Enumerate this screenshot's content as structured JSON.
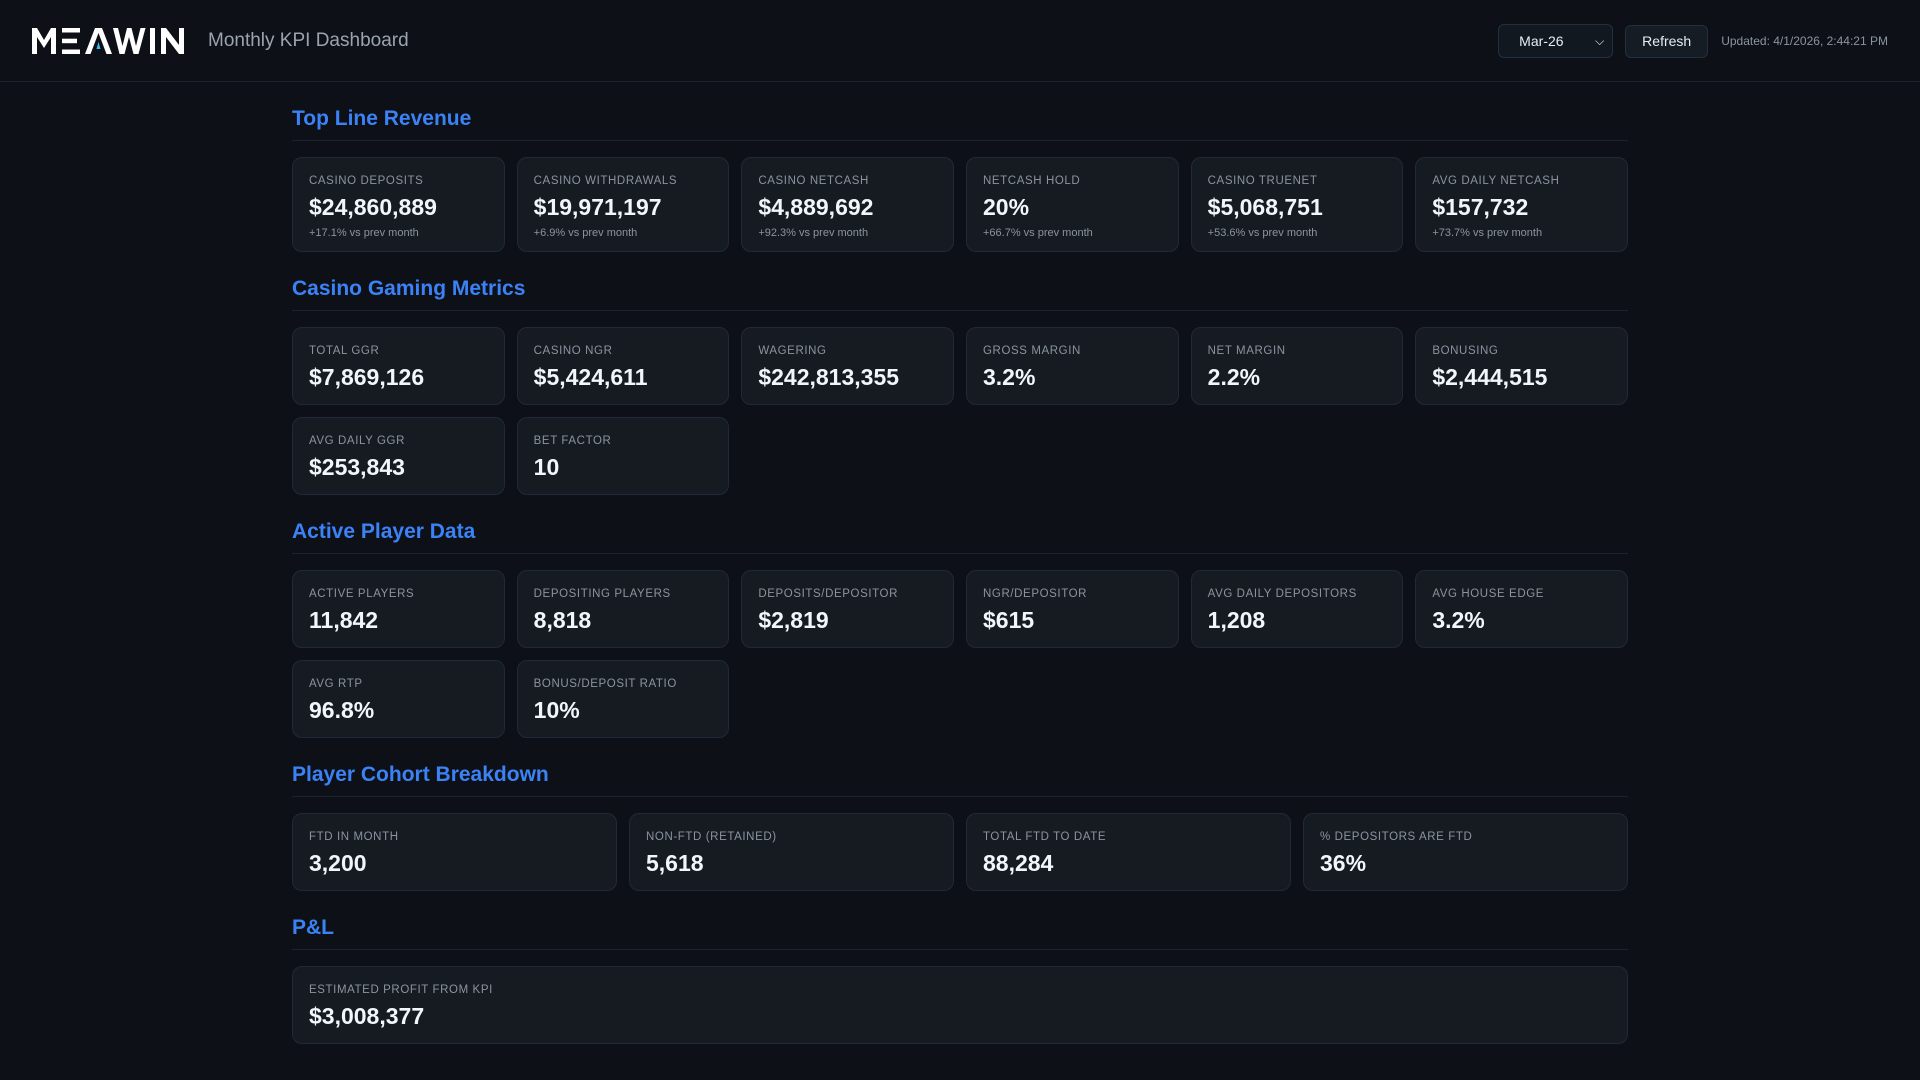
{
  "header": {
    "logo_text": "METAWIN",
    "title": "Monthly KPI Dashboard",
    "month_select": "Mar-26",
    "refresh_label": "Refresh",
    "updated": "Updated: 4/1/2026, 2:44:21 PM"
  },
  "colors": {
    "accent": "#3b82f6",
    "background": "#0d1117",
    "card": "#161b22"
  },
  "sections": [
    {
      "title": "Top Line Revenue",
      "cards": [
        {
          "label": "Casino Deposits",
          "value": "$24,860,889",
          "change": "+17.1% vs prev month"
        },
        {
          "label": "Casino Withdrawals",
          "value": "$19,971,197",
          "change": "+6.9% vs prev month"
        },
        {
          "label": "Casino Netcash",
          "value": "$4,889,692",
          "change": "+92.3% vs prev month"
        },
        {
          "label": "Netcash Hold",
          "value": "20%",
          "change": "+66.7% vs prev month"
        },
        {
          "label": "Casino Truenet",
          "value": "$5,068,751",
          "change": "+53.6% vs prev month"
        },
        {
          "label": "Avg Daily Netcash",
          "value": "$157,732",
          "change": "+73.7% vs prev month"
        }
      ]
    },
    {
      "title": "Casino Gaming Metrics",
      "cards": [
        {
          "label": "Total GGR",
          "value": "$7,869,126"
        },
        {
          "label": "Casino NGR",
          "value": "$5,424,611"
        },
        {
          "label": "Wagering",
          "value": "$242,813,355"
        },
        {
          "label": "Gross Margin",
          "value": "3.2%"
        },
        {
          "label": "Net Margin",
          "value": "2.2%"
        },
        {
          "label": "Bonusing",
          "value": "$2,444,515"
        },
        {
          "label": "Avg Daily GGR",
          "value": "$253,843"
        },
        {
          "label": "Bet Factor",
          "value": "10"
        }
      ]
    },
    {
      "title": "Active Player Data",
      "cards": [
        {
          "label": "Active Players",
          "value": "11,842"
        },
        {
          "label": "Depositing Players",
          "value": "8,818"
        },
        {
          "label": "Deposits/Depositor",
          "value": "$2,819"
        },
        {
          "label": "NGR/Depositor",
          "value": "$615"
        },
        {
          "label": "Avg Daily Depositors",
          "value": "1,208"
        },
        {
          "label": "Avg House Edge",
          "value": "3.2%"
        },
        {
          "label": "Avg RTP",
          "value": "96.8%"
        },
        {
          "label": "Bonus/Deposit Ratio",
          "value": "10%"
        }
      ]
    },
    {
      "title": "Player Cohort Breakdown",
      "cards": [
        {
          "label": "FTD in Month",
          "value": "3,200"
        },
        {
          "label": "Non-FTD (Retained)",
          "value": "5,618"
        },
        {
          "label": "Total FTD to Date",
          "value": "88,284"
        },
        {
          "label": "% Depositors are FTD",
          "value": "36%"
        }
      ]
    },
    {
      "title": "P&L",
      "cards": [
        {
          "label": "Estimated Profit from KPI",
          "value": "$3,008,377"
        }
      ]
    }
  ]
}
